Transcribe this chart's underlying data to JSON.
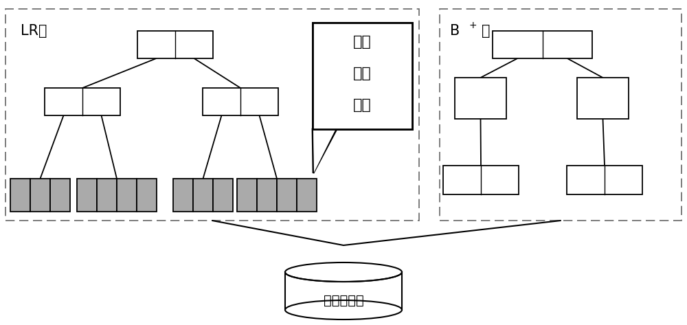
{
  "bg_color": "#ffffff",
  "gray_color": "#aaaaaa",
  "dash_border_color": "#666666",
  "line_color": "#000000",
  "lr_label": "LR树",
  "bp_label": "B",
  "bp_sup": "+",
  "bp_label2": "树",
  "db_label": "时空数据库",
  "callout_lines": [
    "时态",
    "线性",
    "索引"
  ],
  "fig_width": 10.0,
  "fig_height": 4.73
}
